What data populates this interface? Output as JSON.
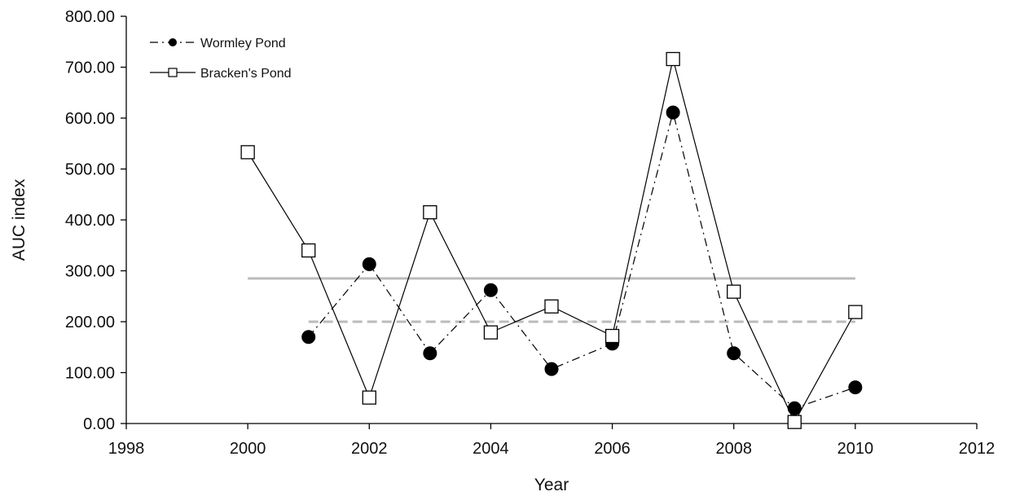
{
  "chart_data": {
    "type": "line",
    "title": "",
    "xlabel": "Year",
    "ylabel": "AUC index",
    "xlim": [
      1998,
      2012
    ],
    "ylim": [
      0,
      800
    ],
    "x_ticks": [
      "1998",
      "2000",
      "2002",
      "2004",
      "2006",
      "2008",
      "2010",
      "2012"
    ],
    "y_ticks": [
      "0.00",
      "100.00",
      "200.00",
      "300.00",
      "400.00",
      "500.00",
      "600.00",
      "700.00",
      "800.00"
    ],
    "grid": false,
    "legend_position": "top-left",
    "series": [
      {
        "name": "Wormley Pond",
        "marker": "filled-circle",
        "line_style": "dash-dot",
        "color": "#000000",
        "x": [
          2001,
          2002,
          2003,
          2004,
          2005,
          2006,
          2007,
          2008,
          2009,
          2010
        ],
        "y": [
          170,
          313,
          138,
          262,
          107,
          157,
          611,
          138,
          30,
          71
        ]
      },
      {
        "name": "Bracken's Pond",
        "marker": "open-square",
        "line_style": "solid",
        "color": "#000000",
        "x": [
          2000,
          2001,
          2002,
          2003,
          2004,
          2005,
          2006,
          2007,
          2008,
          2009,
          2010
        ],
        "y": [
          533,
          340,
          51,
          415,
          179,
          230,
          172,
          716,
          259,
          3,
          219
        ]
      }
    ],
    "reference_lines": [
      {
        "style": "solid",
        "color": "#bbbbbb",
        "x": [
          2000,
          2010
        ],
        "y": 285
      },
      {
        "style": "dashed",
        "color": "#bbbbbb",
        "x": [
          2001,
          2010
        ],
        "y": 200
      }
    ]
  }
}
